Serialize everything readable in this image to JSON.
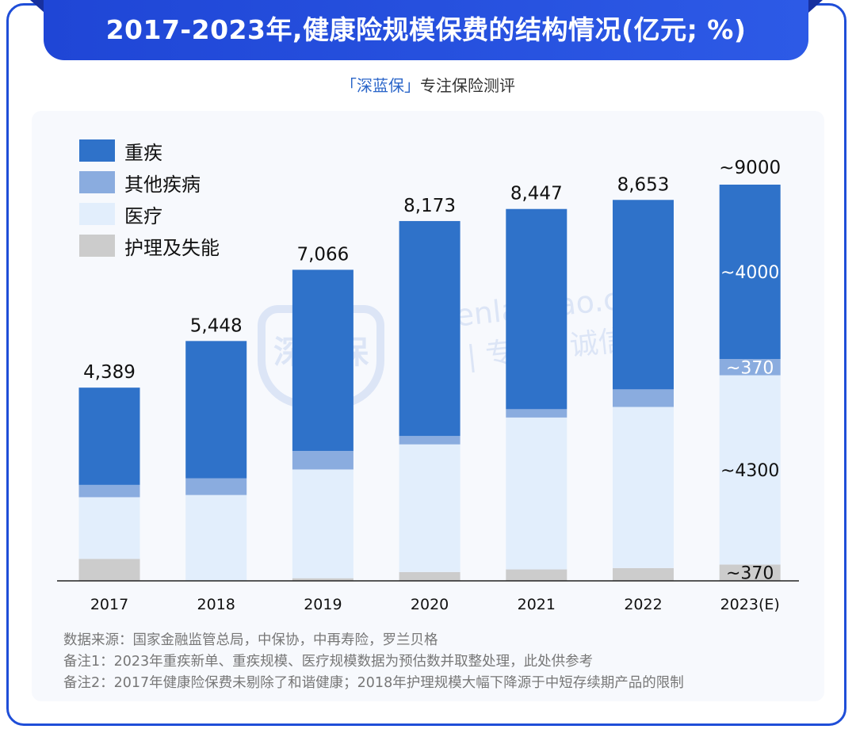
{
  "title": "2017-2023年,健康险规模保费的结构情况(亿元; %)",
  "subtitle": {
    "brand": "「深蓝保」",
    "rest": "专注保险测评"
  },
  "watermark": {
    "logo": "深蓝保",
    "url": "shenlanbao.com",
    "slogan": "中立 | 专业 | 诚信"
  },
  "colors": {
    "critical_illness": "#2f72c9",
    "other_disease": "#8aacdf",
    "medical": "#e2eefc",
    "nursing": "#cccccc",
    "accent": "#1f4ed8"
  },
  "chart_data": {
    "type": "bar",
    "stacked": true,
    "title": "2017-2023年,健康险规模保费的结构情况(亿元; %)",
    "xlabel": "",
    "ylabel": "",
    "ylim": [
      0,
      9000
    ],
    "grid": false,
    "legend_position": "top-left",
    "categories": [
      "2017",
      "2018",
      "2019",
      "2020",
      "2021",
      "2022",
      "2023(E)"
    ],
    "totals": [
      4389,
      5448,
      7066,
      8173,
      8447,
      8653,
      9000
    ],
    "total_labels": [
      "4,389",
      "5,448",
      "7,066",
      "8,173",
      "8,447",
      "8,653",
      "~9000"
    ],
    "series": [
      {
        "key": "nursing",
        "name": "护理及失能",
        "values": [
          500,
          0,
          60,
          200,
          260,
          290,
          370
        ]
      },
      {
        "key": "medical",
        "name": "医疗",
        "values": [
          1400,
          1950,
          2470,
          2900,
          3450,
          3660,
          4300
        ]
      },
      {
        "key": "other_disease",
        "name": "其他疾病",
        "values": [
          280,
          380,
          420,
          190,
          190,
          400,
          370
        ]
      },
      {
        "key": "critical_illness",
        "name": "重疾",
        "values": [
          2209,
          3118,
          4116,
          4883,
          4547,
          4303,
          3960
        ]
      }
    ],
    "segment_annotations": [
      {
        "category": "2023(E)",
        "series": "critical_illness",
        "text": "~4000"
      },
      {
        "category": "2023(E)",
        "series": "other_disease",
        "text": "~370"
      },
      {
        "category": "2023(E)",
        "series": "medical",
        "text": "~4300"
      },
      {
        "category": "2023(E)",
        "series": "nursing",
        "text": "~370"
      }
    ]
  },
  "legend": [
    {
      "key": "critical_illness",
      "label": "重疾"
    },
    {
      "key": "other_disease",
      "label": "其他疾病"
    },
    {
      "key": "medical",
      "label": "医疗"
    },
    {
      "key": "nursing",
      "label": "护理及失能"
    }
  ],
  "notes": [
    "数据来源：国家金融监管总局，中保协，中再寿险，罗兰贝格",
    "备注1：2023年重疾新单、重疾规模、医疗规模数据为预估数并取整处理，此处供参考",
    "备注2：2017年健康险保费未剔除了和谐健康；2018年护理规模大幅下降源于中短存续期产品的限制"
  ]
}
